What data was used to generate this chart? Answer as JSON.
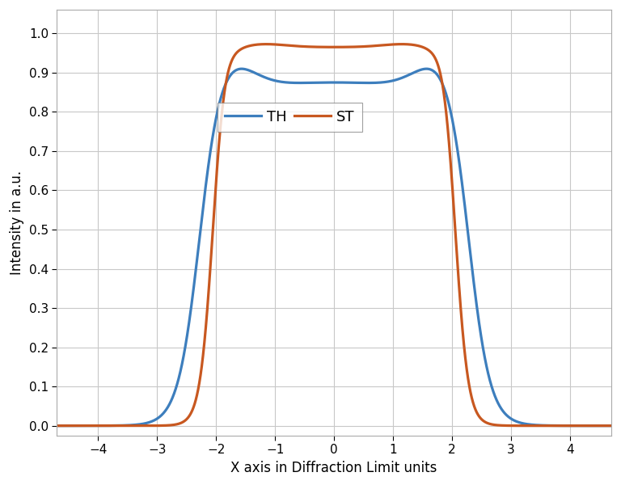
{
  "title": "",
  "xlabel": "X axis in Diffraction Limit units",
  "ylabel": "Intensity in a.u.",
  "xlim": [
    -4.7,
    4.7
  ],
  "ylim": [
    -0.025,
    1.06
  ],
  "xticks": [
    -4,
    -3,
    -2,
    -1,
    0,
    1,
    2,
    3,
    4
  ],
  "yticks": [
    0,
    0.1,
    0.2,
    0.3,
    0.4,
    0.5,
    0.6,
    0.7,
    0.8,
    0.9,
    1.0
  ],
  "th_color": "#3d7ebd",
  "st_color": "#c85820",
  "linewidth": 2.3,
  "legend_labels": [
    "TH",
    "ST"
  ],
  "background_color": "#ffffff",
  "grid_color": "#c8c8c8"
}
